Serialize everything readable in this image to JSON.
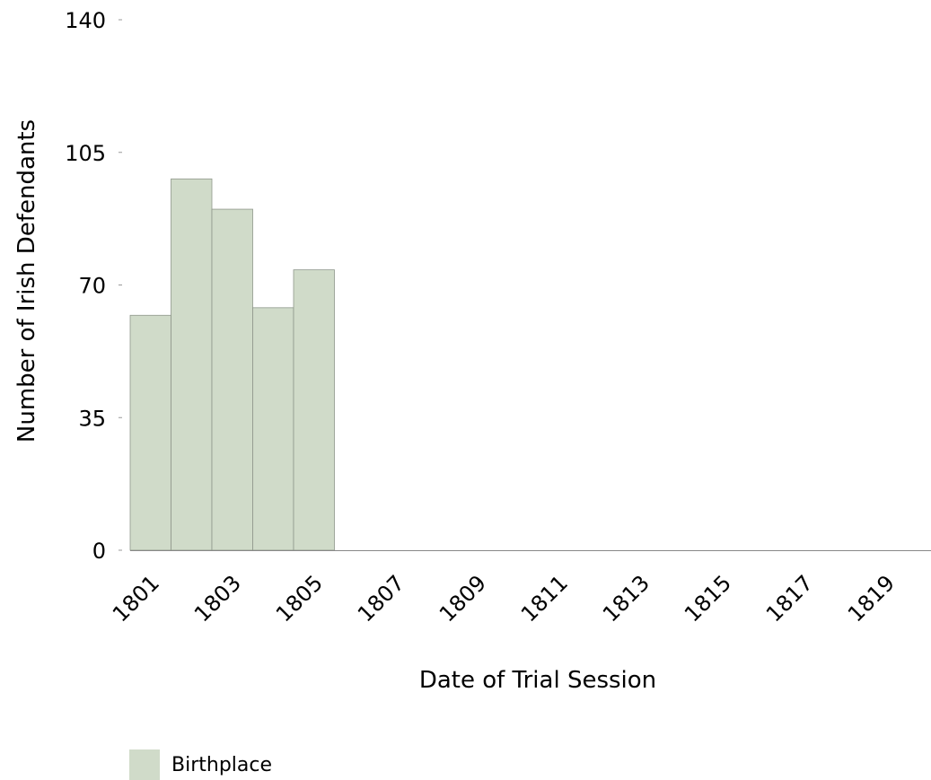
{
  "chart_data": {
    "type": "bar",
    "xlabel": "Date of Trial Session",
    "ylabel": "Number of Irish Defendants",
    "ylim": [
      0,
      140
    ],
    "yticks": [
      0,
      35,
      70,
      105,
      140
    ],
    "xlim": [
      1801,
      1820
    ],
    "xticks": [
      "1801",
      "1803",
      "1805",
      "1807",
      "1809",
      "1811",
      "1813",
      "1815",
      "1817",
      "1819"
    ],
    "bars": [
      {
        "x": 1801,
        "value": 62
      },
      {
        "x": 1802,
        "value": 98
      },
      {
        "x": 1803,
        "value": 90
      },
      {
        "x": 1804,
        "value": 64
      },
      {
        "x": 1805,
        "value": 74
      }
    ],
    "series": [
      {
        "name": "Birthplace",
        "color": "#d0dbc9"
      }
    ],
    "grid": false,
    "legend_position": "bottom-left"
  }
}
